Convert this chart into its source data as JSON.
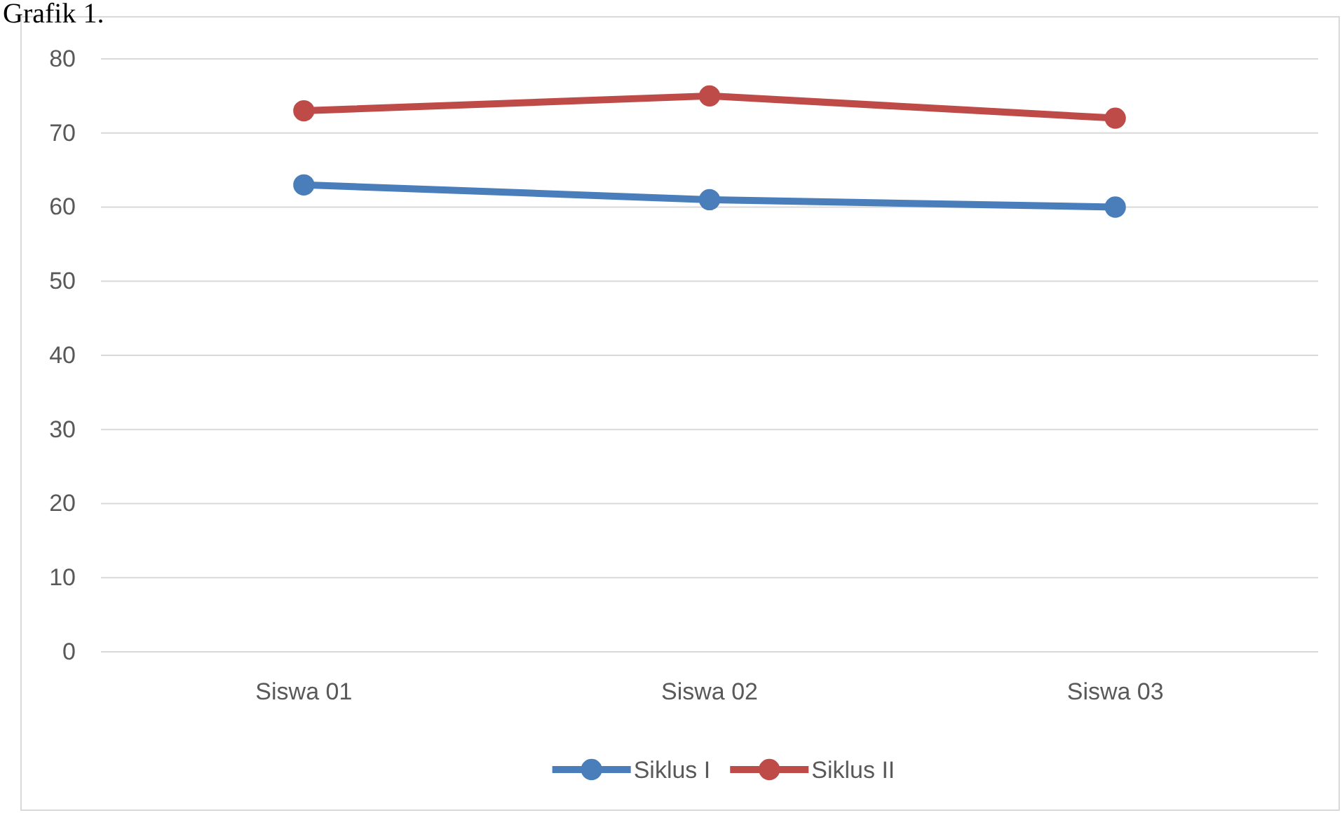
{
  "chart_data": {
    "type": "line",
    "title": "Grafik 1.",
    "categories": [
      "Siswa 01",
      "Siswa 02",
      "Siswa 03"
    ],
    "series": [
      {
        "name": "Siklus I",
        "color": "#4a7ebb",
        "values": [
          63,
          61,
          60
        ]
      },
      {
        "name": "Siklus II",
        "color": "#be4b48",
        "values": [
          73,
          75,
          72
        ]
      }
    ],
    "ylim": [
      0,
      80
    ],
    "yticks": [
      0,
      10,
      20,
      30,
      40,
      50,
      60,
      70,
      80
    ],
    "grid": "y",
    "legend": "bottom",
    "marker": "circle",
    "line_style": "solid"
  }
}
